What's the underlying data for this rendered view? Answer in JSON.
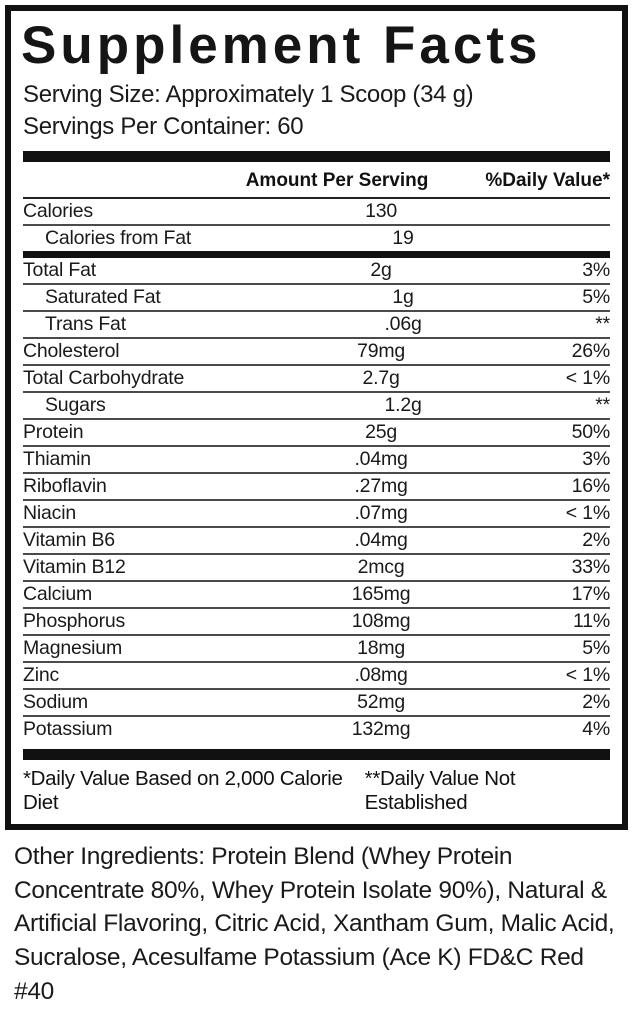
{
  "colors": {
    "ink": "#111111",
    "background": "#ffffff"
  },
  "label": {
    "title": "Supplement Facts",
    "serving_size": "Serving Size: Approximately 1 Scoop (34 g)",
    "servings_per_container": "Servings Per Container: 60",
    "columns": {
      "amount": "Amount Per Serving",
      "daily_value": "%Daily Value*"
    },
    "rows": [
      {
        "name": "Calories",
        "amount": "130",
        "dv": "",
        "indent": false,
        "sep": "thin"
      },
      {
        "name": "Calories from Fat",
        "amount": "19",
        "dv": "",
        "indent": true,
        "sep": "medium"
      },
      {
        "name": "Total Fat",
        "amount": "2g",
        "dv": "3%",
        "indent": false,
        "sep": "thin"
      },
      {
        "name": "Saturated Fat",
        "amount": "1g",
        "dv": "5%",
        "indent": true,
        "sep": "thin"
      },
      {
        "name": "Trans Fat",
        "amount": ".06g",
        "dv": "**",
        "indent": true,
        "sep": "thin"
      },
      {
        "name": "Cholesterol",
        "amount": "79mg",
        "dv": "26%",
        "indent": false,
        "sep": "thin"
      },
      {
        "name": "Total Carbohydrate",
        "amount": "2.7g",
        "dv": "< 1%",
        "indent": false,
        "sep": "thin"
      },
      {
        "name": "Sugars",
        "amount": "1.2g",
        "dv": "**",
        "indent": true,
        "sep": "thin"
      },
      {
        "name": "Protein",
        "amount": "25g",
        "dv": "50%",
        "indent": false,
        "sep": "thin"
      },
      {
        "name": "Thiamin",
        "amount": ".04mg",
        "dv": "3%",
        "indent": false,
        "sep": "thin"
      },
      {
        "name": "Riboflavin",
        "amount": ".27mg",
        "dv": "16%",
        "indent": false,
        "sep": "thin"
      },
      {
        "name": "Niacin",
        "amount": ".07mg",
        "dv": "< 1%",
        "indent": false,
        "sep": "thin"
      },
      {
        "name": "Vitamin B6",
        "amount": ".04mg",
        "dv": "2%",
        "indent": false,
        "sep": "thin"
      },
      {
        "name": "Vitamin B12",
        "amount": "2mcg",
        "dv": "33%",
        "indent": false,
        "sep": "thin"
      },
      {
        "name": "Calcium",
        "amount": "165mg",
        "dv": "17%",
        "indent": false,
        "sep": "thin"
      },
      {
        "name": "Phosphorus",
        "amount": "108mg",
        "dv": "11%",
        "indent": false,
        "sep": "thin"
      },
      {
        "name": "Magnesium",
        "amount": "18mg",
        "dv": "5%",
        "indent": false,
        "sep": "thin"
      },
      {
        "name": "Zinc",
        "amount": ".08mg",
        "dv": "< 1%",
        "indent": false,
        "sep": "thin"
      },
      {
        "name": "Sodium",
        "amount": "52mg",
        "dv": "2%",
        "indent": false,
        "sep": "thin"
      },
      {
        "name": "Potassium",
        "amount": "132mg",
        "dv": "4%",
        "indent": false,
        "sep": "none"
      }
    ],
    "footnotes": {
      "left": "*Daily Value Based on 2,000 Calorie Diet",
      "right": "**Daily Value Not Established"
    }
  },
  "other_ingredients": "Other Ingredients: Protein Blend (Whey Protein Concentrate 80%, Whey Protein Isolate 90%), Natural & Artificial Flavoring, Citric Acid, Xantham Gum, Malic Acid, Sucralose, Acesulfame Potassium (Ace K) FD&C Red #40"
}
